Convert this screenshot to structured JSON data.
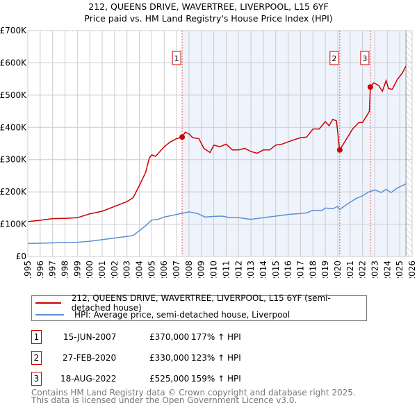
{
  "title": "212, QUEENS DRIVE, WAVERTREE, LIVERPOOL, L15 6YF",
  "subtitle": "Price paid vs. HM Land Registry's House Price Index (HPI)",
  "chart_data": {
    "type": "line",
    "title": "212, QUEENS DRIVE, WAVERTREE, LIVERPOOL, L15 6YF",
    "subtitle": "Price paid vs. HM Land Registry's House Price Index (HPI)",
    "xlim": [
      1995,
      2026
    ],
    "ylim": [
      0,
      700000
    ],
    "x_ticks": [
      "1995",
      "1996",
      "1997",
      "1998",
      "1999",
      "2000",
      "2001",
      "2002",
      "2003",
      "2004",
      "2005",
      "2006",
      "2007",
      "2008",
      "2009",
      "2010",
      "2011",
      "2012",
      "2013",
      "2014",
      "2015",
      "2016",
      "2017",
      "2018",
      "2019",
      "2020",
      "2021",
      "2022",
      "2023",
      "2024",
      "2025",
      "2026"
    ],
    "y_ticks": [
      {
        "v": 0,
        "label": "£0"
      },
      {
        "v": 100000,
        "label": "£100K"
      },
      {
        "v": 200000,
        "label": "£200K"
      },
      {
        "v": 300000,
        "label": "£300K"
      },
      {
        "v": 400000,
        "label": "£400K"
      },
      {
        "v": 500000,
        "label": "£500K"
      },
      {
        "v": 600000,
        "label": "£600K"
      },
      {
        "v": 700000,
        "label": "£700K"
      }
    ],
    "grid": true,
    "shaded_from": 2007.45,
    "hatched_from": 2025.5,
    "colors": {
      "property": "#cc0000",
      "hpi": "#5b8fd4",
      "shade": "#eef3fc"
    },
    "series": [
      {
        "name": "212, QUEENS DRIVE, WAVERTREE, LIVERPOOL, L15 6YF (semi-detached house)",
        "x": [
          1995,
          1996,
          1997,
          1998,
          1999,
          2000,
          2001,
          2002,
          2003,
          2003.5,
          2004,
          2004.5,
          2004.8,
          2005,
          2005.3,
          2006,
          2006.5,
          2007,
          2007.45,
          2007.7,
          2008,
          2008.3,
          2008.8,
          2009.2,
          2009.7,
          2010,
          2010.5,
          2011,
          2011.5,
          2012,
          2012.5,
          2013,
          2013.5,
          2014,
          2014.5,
          2015,
          2015.5,
          2016,
          2016.5,
          2017,
          2017.5,
          2018,
          2018.5,
          2019,
          2019.3,
          2019.6,
          2019.9,
          2020.15,
          2020.4,
          2020.8,
          2021.2,
          2021.7,
          2022,
          2022.4,
          2022.55,
          2022.63,
          2022.9,
          2023.3,
          2023.6,
          2023.9,
          2024.1,
          2024.4,
          2024.8,
          2025.2,
          2025.5
        ],
        "values": [
          108000,
          112000,
          117000,
          118000,
          120000,
          132000,
          140000,
          155000,
          170000,
          182000,
          220000,
          260000,
          305000,
          315000,
          310000,
          340000,
          355000,
          365000,
          370000,
          385000,
          380000,
          368000,
          365000,
          335000,
          322000,
          345000,
          340000,
          348000,
          330000,
          330000,
          335000,
          325000,
          320000,
          330000,
          330000,
          345000,
          348000,
          355000,
          362000,
          368000,
          370000,
          395000,
          395000,
          418000,
          405000,
          425000,
          420000,
          330000,
          345000,
          370000,
          395000,
          415000,
          415000,
          440000,
          450000,
          525000,
          538000,
          530000,
          512000,
          545000,
          520000,
          518000,
          548000,
          568000,
          590000
        ]
      },
      {
        "name": "HPI: Average price, semi-detached house, Liverpool",
        "x": [
          1995,
          1996,
          1997,
          1998,
          1999,
          2000,
          2001,
          2002,
          2003,
          2003.5,
          2004,
          2004.5,
          2005,
          2005.5,
          2006,
          2007,
          2007.5,
          2008,
          2008.7,
          2009.3,
          2010,
          2010.7,
          2011.3,
          2012,
          2013,
          2014,
          2015,
          2016,
          2017,
          2017.5,
          2018,
          2018.7,
          2019,
          2019.6,
          2020,
          2020.15,
          2020.5,
          2021,
          2021.5,
          2022,
          2022.5,
          2023,
          2023.5,
          2023.9,
          2024.3,
          2024.8,
          2025.5
        ],
        "values": [
          40000,
          41000,
          42000,
          43000,
          44000,
          47000,
          52000,
          57000,
          62000,
          65000,
          80000,
          95000,
          113000,
          115000,
          122000,
          130000,
          134000,
          138000,
          133000,
          122000,
          124000,
          125000,
          120000,
          120000,
          115000,
          120000,
          125000,
          130000,
          133000,
          135000,
          143000,
          142000,
          150000,
          148000,
          155000,
          145000,
          155000,
          168000,
          180000,
          188000,
          200000,
          206000,
          198000,
          208000,
          198000,
          212000,
          225000
        ]
      }
    ],
    "sales": [
      {
        "id": "1",
        "x": 2007.45,
        "value": 370000,
        "date": "15-JUN-2007",
        "price": "£370,000",
        "hpi": "177% ↑ HPI"
      },
      {
        "id": "2",
        "x": 2020.16,
        "value": 330000,
        "date": "27-FEB-2020",
        "price": "£330,000",
        "hpi": "123% ↑ HPI"
      },
      {
        "id": "3",
        "x": 2022.63,
        "value": 525000,
        "date": "18-AUG-2022",
        "price": "£525,000",
        "hpi": "159% ↑ HPI"
      }
    ]
  },
  "legend": {
    "property": "212, QUEENS DRIVE, WAVERTREE, LIVERPOOL, L15 6YF (semi-detached house)",
    "hpi": "HPI: Average price, semi-detached house, Liverpool"
  },
  "footer": {
    "line1": "Contains HM Land Registry data © Crown copyright and database right 2025.",
    "line2": "This data is licensed under the Open Government Licence v3.0."
  }
}
